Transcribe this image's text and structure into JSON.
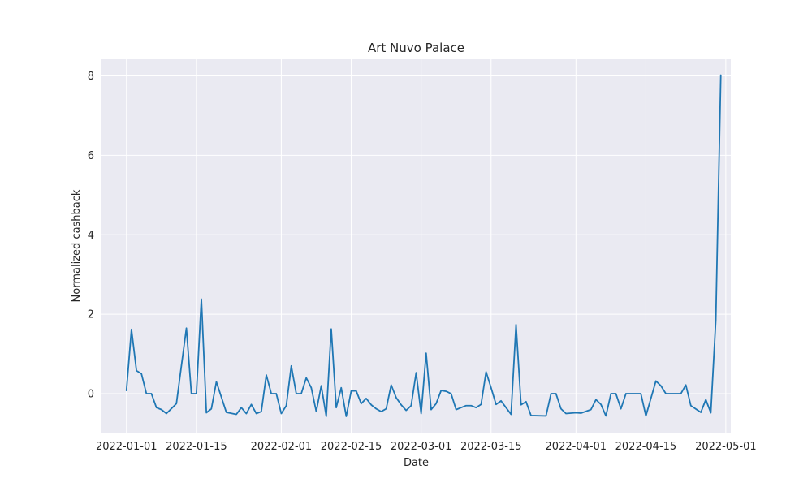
{
  "chart_data": {
    "type": "line",
    "title": "Art Nuvo Palace",
    "xlabel": "Date",
    "ylabel": "Normalized cashback",
    "x_type": "date",
    "xlim": [
      "2021-12-27",
      "2022-05-02"
    ],
    "ylim": [
      -0.98,
      8.42
    ],
    "grid": true,
    "x_ticks": [
      {
        "date": "2022-01-01",
        "label": "2022-01-01"
      },
      {
        "date": "2022-01-15",
        "label": "2022-01-15"
      },
      {
        "date": "2022-02-01",
        "label": "2022-02-01"
      },
      {
        "date": "2022-02-15",
        "label": "2022-02-15"
      },
      {
        "date": "2022-03-01",
        "label": "2022-03-01"
      },
      {
        "date": "2022-03-15",
        "label": "2022-03-15"
      },
      {
        "date": "2022-04-01",
        "label": "2022-04-01"
      },
      {
        "date": "2022-04-15",
        "label": "2022-04-15"
      },
      {
        "date": "2022-05-01",
        "label": "2022-05-01"
      }
    ],
    "y_ticks": [
      {
        "value": 0,
        "label": "0"
      },
      {
        "value": 2,
        "label": "2"
      },
      {
        "value": 4,
        "label": "4"
      },
      {
        "value": 6,
        "label": "6"
      },
      {
        "value": 8,
        "label": "8"
      }
    ],
    "series": [
      {
        "color": "#1f77b4",
        "points": [
          [
            "2022-01-01",
            0.08
          ],
          [
            "2022-01-02",
            1.62
          ],
          [
            "2022-01-03",
            0.58
          ],
          [
            "2022-01-04",
            0.5
          ],
          [
            "2022-01-05",
            0.0
          ],
          [
            "2022-01-06",
            0.0
          ],
          [
            "2022-01-07",
            -0.35
          ],
          [
            "2022-01-08",
            -0.4
          ],
          [
            "2022-01-09",
            -0.5
          ],
          [
            "2022-01-11",
            -0.25
          ],
          [
            "2022-01-13",
            1.65
          ],
          [
            "2022-01-14",
            0.0
          ],
          [
            "2022-01-15",
            0.0
          ],
          [
            "2022-01-16",
            2.38
          ],
          [
            "2022-01-17",
            -0.48
          ],
          [
            "2022-01-18",
            -0.38
          ],
          [
            "2022-01-19",
            0.3
          ],
          [
            "2022-01-21",
            -0.47
          ],
          [
            "2022-01-23",
            -0.52
          ],
          [
            "2022-01-24",
            -0.35
          ],
          [
            "2022-01-25",
            -0.5
          ],
          [
            "2022-01-26",
            -0.27
          ],
          [
            "2022-01-27",
            -0.5
          ],
          [
            "2022-01-28",
            -0.45
          ],
          [
            "2022-01-29",
            0.47
          ],
          [
            "2022-01-30",
            0.0
          ],
          [
            "2022-01-31",
            0.0
          ],
          [
            "2022-02-01",
            -0.5
          ],
          [
            "2022-02-02",
            -0.3
          ],
          [
            "2022-02-03",
            0.7
          ],
          [
            "2022-02-04",
            0.0
          ],
          [
            "2022-02-05",
            0.0
          ],
          [
            "2022-02-06",
            0.4
          ],
          [
            "2022-02-07",
            0.15
          ],
          [
            "2022-02-08",
            -0.45
          ],
          [
            "2022-02-09",
            0.2
          ],
          [
            "2022-02-10",
            -0.57
          ],
          [
            "2022-02-11",
            1.63
          ],
          [
            "2022-02-12",
            -0.35
          ],
          [
            "2022-02-13",
            0.15
          ],
          [
            "2022-02-14",
            -0.57
          ],
          [
            "2022-02-15",
            0.07
          ],
          [
            "2022-02-16",
            0.07
          ],
          [
            "2022-02-17",
            -0.25
          ],
          [
            "2022-02-18",
            -0.12
          ],
          [
            "2022-02-19",
            -0.28
          ],
          [
            "2022-02-20",
            -0.38
          ],
          [
            "2022-02-21",
            -0.45
          ],
          [
            "2022-02-22",
            -0.38
          ],
          [
            "2022-02-23",
            0.22
          ],
          [
            "2022-02-24",
            -0.1
          ],
          [
            "2022-02-25",
            -0.28
          ],
          [
            "2022-02-26",
            -0.42
          ],
          [
            "2022-02-27",
            -0.3
          ],
          [
            "2022-02-28",
            0.53
          ],
          [
            "2022-03-01",
            -0.5
          ],
          [
            "2022-03-02",
            1.02
          ],
          [
            "2022-03-03",
            -0.4
          ],
          [
            "2022-03-04",
            -0.25
          ],
          [
            "2022-03-05",
            0.08
          ],
          [
            "2022-03-06",
            0.06
          ],
          [
            "2022-03-07",
            0.0
          ],
          [
            "2022-03-08",
            -0.4
          ],
          [
            "2022-03-09",
            -0.35
          ],
          [
            "2022-03-10",
            -0.3
          ],
          [
            "2022-03-11",
            -0.3
          ],
          [
            "2022-03-12",
            -0.35
          ],
          [
            "2022-03-13",
            -0.27
          ],
          [
            "2022-03-14",
            0.55
          ],
          [
            "2022-03-15",
            0.15
          ],
          [
            "2022-03-16",
            -0.27
          ],
          [
            "2022-03-17",
            -0.18
          ],
          [
            "2022-03-18",
            -0.35
          ],
          [
            "2022-03-19",
            -0.52
          ],
          [
            "2022-03-20",
            1.74
          ],
          [
            "2022-03-21",
            -0.28
          ],
          [
            "2022-03-22",
            -0.2
          ],
          [
            "2022-03-23",
            -0.55
          ],
          [
            "2022-03-26",
            -0.56
          ],
          [
            "2022-03-27",
            0.0
          ],
          [
            "2022-03-28",
            0.0
          ],
          [
            "2022-03-29",
            -0.38
          ],
          [
            "2022-03-30",
            -0.5
          ],
          [
            "2022-04-01",
            -0.48
          ],
          [
            "2022-04-02",
            -0.49
          ],
          [
            "2022-04-04",
            -0.4
          ],
          [
            "2022-04-05",
            -0.15
          ],
          [
            "2022-04-06",
            -0.27
          ],
          [
            "2022-04-07",
            -0.56
          ],
          [
            "2022-04-08",
            0.0
          ],
          [
            "2022-04-09",
            0.0
          ],
          [
            "2022-04-10",
            -0.38
          ],
          [
            "2022-04-11",
            0.0
          ],
          [
            "2022-04-12",
            0.0
          ],
          [
            "2022-04-14",
            0.0
          ],
          [
            "2022-04-15",
            -0.56
          ],
          [
            "2022-04-17",
            0.32
          ],
          [
            "2022-04-18",
            0.2
          ],
          [
            "2022-04-19",
            0.0
          ],
          [
            "2022-04-22",
            0.0
          ],
          [
            "2022-04-23",
            0.22
          ],
          [
            "2022-04-24",
            -0.3
          ],
          [
            "2022-04-26",
            -0.47
          ],
          [
            "2022-04-27",
            -0.15
          ],
          [
            "2022-04-28",
            -0.48
          ],
          [
            "2022-04-29",
            1.85
          ],
          [
            "2022-04-30",
            8.02
          ]
        ]
      }
    ]
  }
}
